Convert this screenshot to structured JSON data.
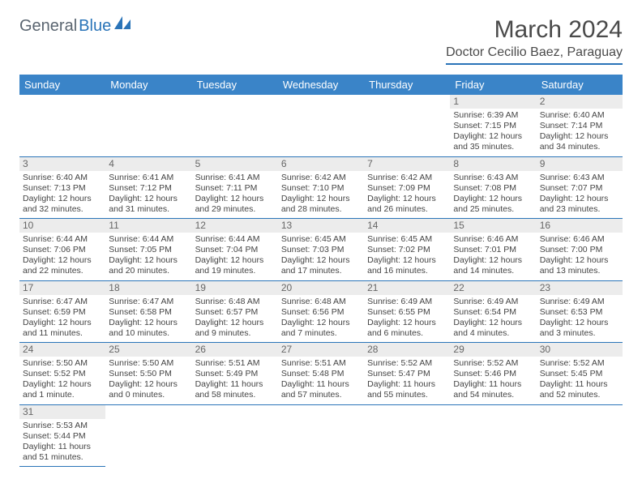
{
  "logo": {
    "part1": "General",
    "part2": "Blue"
  },
  "title": "March 2024",
  "location": "Doctor Cecilio Baez, Paraguay",
  "colors": {
    "header_bg": "#3a84c8",
    "rule": "#2a74b8",
    "day_bg": "#ececec",
    "text": "#444444"
  },
  "weekdays": [
    "Sunday",
    "Monday",
    "Tuesday",
    "Wednesday",
    "Thursday",
    "Friday",
    "Saturday"
  ],
  "weeks": [
    [
      null,
      null,
      null,
      null,
      null,
      {
        "d": "1",
        "sr": "Sunrise: 6:39 AM",
        "ss": "Sunset: 7:15 PM",
        "dl1": "Daylight: 12 hours",
        "dl2": "and 35 minutes."
      },
      {
        "d": "2",
        "sr": "Sunrise: 6:40 AM",
        "ss": "Sunset: 7:14 PM",
        "dl1": "Daylight: 12 hours",
        "dl2": "and 34 minutes."
      }
    ],
    [
      {
        "d": "3",
        "sr": "Sunrise: 6:40 AM",
        "ss": "Sunset: 7:13 PM",
        "dl1": "Daylight: 12 hours",
        "dl2": "and 32 minutes."
      },
      {
        "d": "4",
        "sr": "Sunrise: 6:41 AM",
        "ss": "Sunset: 7:12 PM",
        "dl1": "Daylight: 12 hours",
        "dl2": "and 31 minutes."
      },
      {
        "d": "5",
        "sr": "Sunrise: 6:41 AM",
        "ss": "Sunset: 7:11 PM",
        "dl1": "Daylight: 12 hours",
        "dl2": "and 29 minutes."
      },
      {
        "d": "6",
        "sr": "Sunrise: 6:42 AM",
        "ss": "Sunset: 7:10 PM",
        "dl1": "Daylight: 12 hours",
        "dl2": "and 28 minutes."
      },
      {
        "d": "7",
        "sr": "Sunrise: 6:42 AM",
        "ss": "Sunset: 7:09 PM",
        "dl1": "Daylight: 12 hours",
        "dl2": "and 26 minutes."
      },
      {
        "d": "8",
        "sr": "Sunrise: 6:43 AM",
        "ss": "Sunset: 7:08 PM",
        "dl1": "Daylight: 12 hours",
        "dl2": "and 25 minutes."
      },
      {
        "d": "9",
        "sr": "Sunrise: 6:43 AM",
        "ss": "Sunset: 7:07 PM",
        "dl1": "Daylight: 12 hours",
        "dl2": "and 23 minutes."
      }
    ],
    [
      {
        "d": "10",
        "sr": "Sunrise: 6:44 AM",
        "ss": "Sunset: 7:06 PM",
        "dl1": "Daylight: 12 hours",
        "dl2": "and 22 minutes."
      },
      {
        "d": "11",
        "sr": "Sunrise: 6:44 AM",
        "ss": "Sunset: 7:05 PM",
        "dl1": "Daylight: 12 hours",
        "dl2": "and 20 minutes."
      },
      {
        "d": "12",
        "sr": "Sunrise: 6:44 AM",
        "ss": "Sunset: 7:04 PM",
        "dl1": "Daylight: 12 hours",
        "dl2": "and 19 minutes."
      },
      {
        "d": "13",
        "sr": "Sunrise: 6:45 AM",
        "ss": "Sunset: 7:03 PM",
        "dl1": "Daylight: 12 hours",
        "dl2": "and 17 minutes."
      },
      {
        "d": "14",
        "sr": "Sunrise: 6:45 AM",
        "ss": "Sunset: 7:02 PM",
        "dl1": "Daylight: 12 hours",
        "dl2": "and 16 minutes."
      },
      {
        "d": "15",
        "sr": "Sunrise: 6:46 AM",
        "ss": "Sunset: 7:01 PM",
        "dl1": "Daylight: 12 hours",
        "dl2": "and 14 minutes."
      },
      {
        "d": "16",
        "sr": "Sunrise: 6:46 AM",
        "ss": "Sunset: 7:00 PM",
        "dl1": "Daylight: 12 hours",
        "dl2": "and 13 minutes."
      }
    ],
    [
      {
        "d": "17",
        "sr": "Sunrise: 6:47 AM",
        "ss": "Sunset: 6:59 PM",
        "dl1": "Daylight: 12 hours",
        "dl2": "and 11 minutes."
      },
      {
        "d": "18",
        "sr": "Sunrise: 6:47 AM",
        "ss": "Sunset: 6:58 PM",
        "dl1": "Daylight: 12 hours",
        "dl2": "and 10 minutes."
      },
      {
        "d": "19",
        "sr": "Sunrise: 6:48 AM",
        "ss": "Sunset: 6:57 PM",
        "dl1": "Daylight: 12 hours",
        "dl2": "and 9 minutes."
      },
      {
        "d": "20",
        "sr": "Sunrise: 6:48 AM",
        "ss": "Sunset: 6:56 PM",
        "dl1": "Daylight: 12 hours",
        "dl2": "and 7 minutes."
      },
      {
        "d": "21",
        "sr": "Sunrise: 6:49 AM",
        "ss": "Sunset: 6:55 PM",
        "dl1": "Daylight: 12 hours",
        "dl2": "and 6 minutes."
      },
      {
        "d": "22",
        "sr": "Sunrise: 6:49 AM",
        "ss": "Sunset: 6:54 PM",
        "dl1": "Daylight: 12 hours",
        "dl2": "and 4 minutes."
      },
      {
        "d": "23",
        "sr": "Sunrise: 6:49 AM",
        "ss": "Sunset: 6:53 PM",
        "dl1": "Daylight: 12 hours",
        "dl2": "and 3 minutes."
      }
    ],
    [
      {
        "d": "24",
        "sr": "Sunrise: 5:50 AM",
        "ss": "Sunset: 5:52 PM",
        "dl1": "Daylight: 12 hours",
        "dl2": "and 1 minute."
      },
      {
        "d": "25",
        "sr": "Sunrise: 5:50 AM",
        "ss": "Sunset: 5:50 PM",
        "dl1": "Daylight: 12 hours",
        "dl2": "and 0 minutes."
      },
      {
        "d": "26",
        "sr": "Sunrise: 5:51 AM",
        "ss": "Sunset: 5:49 PM",
        "dl1": "Daylight: 11 hours",
        "dl2": "and 58 minutes."
      },
      {
        "d": "27",
        "sr": "Sunrise: 5:51 AM",
        "ss": "Sunset: 5:48 PM",
        "dl1": "Daylight: 11 hours",
        "dl2": "and 57 minutes."
      },
      {
        "d": "28",
        "sr": "Sunrise: 5:52 AM",
        "ss": "Sunset: 5:47 PM",
        "dl1": "Daylight: 11 hours",
        "dl2": "and 55 minutes."
      },
      {
        "d": "29",
        "sr": "Sunrise: 5:52 AM",
        "ss": "Sunset: 5:46 PM",
        "dl1": "Daylight: 11 hours",
        "dl2": "and 54 minutes."
      },
      {
        "d": "30",
        "sr": "Sunrise: 5:52 AM",
        "ss": "Sunset: 5:45 PM",
        "dl1": "Daylight: 11 hours",
        "dl2": "and 52 minutes."
      }
    ],
    [
      {
        "d": "31",
        "sr": "Sunrise: 5:53 AM",
        "ss": "Sunset: 5:44 PM",
        "dl1": "Daylight: 11 hours",
        "dl2": "and 51 minutes."
      },
      null,
      null,
      null,
      null,
      null,
      null
    ]
  ]
}
